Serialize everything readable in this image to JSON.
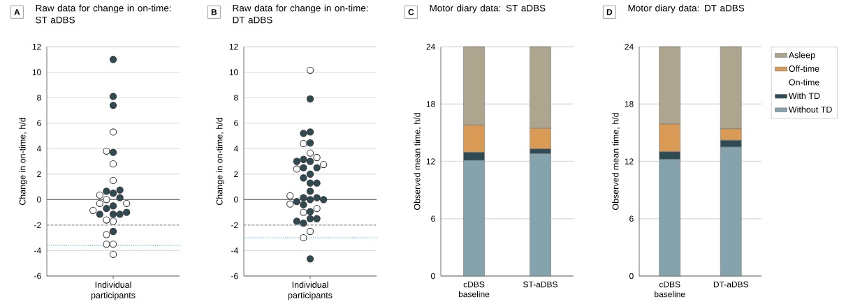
{
  "chart_data": [
    {
      "type": "scatter",
      "title": "Raw data for change in on-time: ST aDBS",
      "annotations": [
        "A"
      ],
      "categories": [
        "Individual participants"
      ],
      "ylabel": "Change in on-time, h/d",
      "ylim": [
        -6,
        12
      ],
      "yticks": [
        -6,
        -4,
        -2,
        0,
        2,
        4,
        6,
        8,
        10,
        12
      ],
      "grid": "y",
      "marker": "circle",
      "ref_lines": [
        {
          "axis": "y",
          "value": 0,
          "color": "#555555",
          "line_style": "solid"
        },
        {
          "axis": "y",
          "value": -2,
          "color": "#9a9a9a",
          "line_style": "dashed"
        },
        {
          "axis": "y",
          "value": -3.6,
          "color": "#3cb4e6",
          "line_style": "dotted"
        }
      ],
      "series": [
        {
          "color": "#2f4a50",
          "x": [
            "Individual participants",
            "Individual participants",
            "Individual participants",
            "Individual participants",
            "Individual participants",
            "Individual participants",
            "Individual participants",
            "Individual participants",
            "Individual participants",
            "Individual participants",
            "Individual participants",
            "Individual participants",
            "Individual participants",
            "Individual participants",
            "Individual participants"
          ],
          "values": [
            11.0,
            8.1,
            7.4,
            3.7,
            0.5,
            0.65,
            0.75,
            0.15,
            -0.5,
            -0.7,
            -1.15,
            -1.15,
            -1.15,
            -1.0,
            -2.5
          ]
        },
        {
          "color": "#ffffff",
          "x": [
            "Individual participants",
            "Individual participants",
            "Individual participants",
            "Individual participants",
            "Individual participants",
            "Individual participants",
            "Individual participants",
            "Individual participants",
            "Individual participants",
            "Individual participants",
            "Individual participants",
            "Individual participants",
            "Individual participants",
            "Individual participants",
            "Individual participants"
          ],
          "values": [
            5.3,
            3.8,
            2.8,
            1.5,
            0.35,
            -0.3,
            -0.3,
            0.0,
            -0.85,
            -1.6,
            -1.7,
            -2.75,
            -3.5,
            -3.5,
            -4.3
          ]
        }
      ]
    },
    {
      "type": "scatter",
      "title": "Raw data for change in on-time: DT aDBS",
      "annotations": [
        "B"
      ],
      "categories": [
        "Individual participants"
      ],
      "ylabel": "Change in on-time, h/d",
      "ylim": [
        -6,
        12
      ],
      "yticks": [
        -6,
        -4,
        -2,
        0,
        2,
        4,
        6,
        8,
        10,
        12
      ],
      "grid": "y",
      "marker": "circle",
      "ref_lines": [
        {
          "axis": "y",
          "value": 0,
          "color": "#555555",
          "line_style": "solid"
        },
        {
          "axis": "y",
          "value": -2,
          "color": "#9a9a9a",
          "line_style": "dashed"
        },
        {
          "axis": "y",
          "value": -3.0,
          "color": "#3cb4e6",
          "line_style": "dotted"
        }
      ],
      "series": [
        {
          "color": "#2f4a50",
          "x": [
            "Individual participants",
            "Individual participants",
            "Individual participants",
            "Individual participants",
            "Individual participants",
            "Individual participants",
            "Individual participants",
            "Individual participants",
            "Individual participants",
            "Individual participants",
            "Individual participants",
            "Individual participants",
            "Individual participants",
            "Individual participants",
            "Individual participants",
            "Individual participants",
            "Individual participants",
            "Individual participants",
            "Individual participants",
            "Individual participants",
            "Individual participants",
            "Individual participants",
            "Individual participants",
            "Individual participants",
            "Individual participants",
            "Individual participants"
          ],
          "values": [
            7.9,
            5.3,
            5.2,
            4.45,
            3.0,
            3.15,
            2.5,
            2.0,
            1.3,
            1.7,
            2.5,
            1.3,
            3.0,
            0.65,
            0.0,
            0.15,
            0.15,
            -0.15,
            0.0,
            -0.4,
            -0.95,
            -1.5,
            -1.85,
            -1.5,
            -1.7,
            -4.65
          ]
        },
        {
          "color": "#ffffff",
          "x": [
            "Individual participants",
            "Individual participants",
            "Individual participants",
            "Individual participants",
            "Individual participants",
            "Individual participants",
            "Individual participants",
            "Individual participants",
            "Individual participants",
            "Individual participants",
            "Individual participants",
            "Individual participants"
          ],
          "values": [
            10.15,
            4.4,
            3.65,
            3.3,
            2.75,
            2.4,
            0.3,
            -0.35,
            -1.0,
            -0.7,
            -2.5,
            -3.0
          ]
        }
      ]
    },
    {
      "type": "bar",
      "stacked": true,
      "title": "Motor diary data: ST aDBS",
      "annotations": [
        "C"
      ],
      "ylabel": "Observed mean time, h/d",
      "categories": [
        "cDBS baseline",
        "ST-aDBS"
      ],
      "ylim": [
        0,
        24
      ],
      "yticks": [
        0,
        6,
        12,
        18,
        24
      ],
      "grid": "y",
      "series": [
        {
          "color": "#85a3ad",
          "values": [
            12.1,
            12.8
          ]
        },
        {
          "color": "#2e4a52",
          "values": [
            0.85,
            0.5
          ]
        },
        {
          "color": "#d99a55",
          "values": [
            2.85,
            2.15
          ]
        },
        {
          "color": "#ada58e",
          "values": [
            8.2,
            8.55
          ]
        }
      ]
    },
    {
      "type": "bar",
      "stacked": true,
      "title": "Motor diary data: DT aDBS",
      "annotations": [
        "D"
      ],
      "ylabel": "Observed mean time, h/d",
      "categories": [
        "cDBS baseline",
        "DT-aDBS"
      ],
      "ylim": [
        0,
        24
      ],
      "yticks": [
        0,
        6,
        12,
        18,
        24
      ],
      "grid": "y",
      "legend": "right",
      "legend_title": "On-time",
      "series": [
        {
          "name": "Without TD",
          "color": "#85a3ad",
          "values": [
            12.2,
            13.5
          ]
        },
        {
          "name": "With TD",
          "color": "#2e4a52",
          "values": [
            0.8,
            0.7
          ]
        },
        {
          "name": "Off-time",
          "color": "#d99a55",
          "values": [
            2.9,
            1.2
          ]
        },
        {
          "name": "Asleep",
          "color": "#ada58e",
          "values": [
            8.1,
            8.6
          ]
        }
      ]
    }
  ]
}
